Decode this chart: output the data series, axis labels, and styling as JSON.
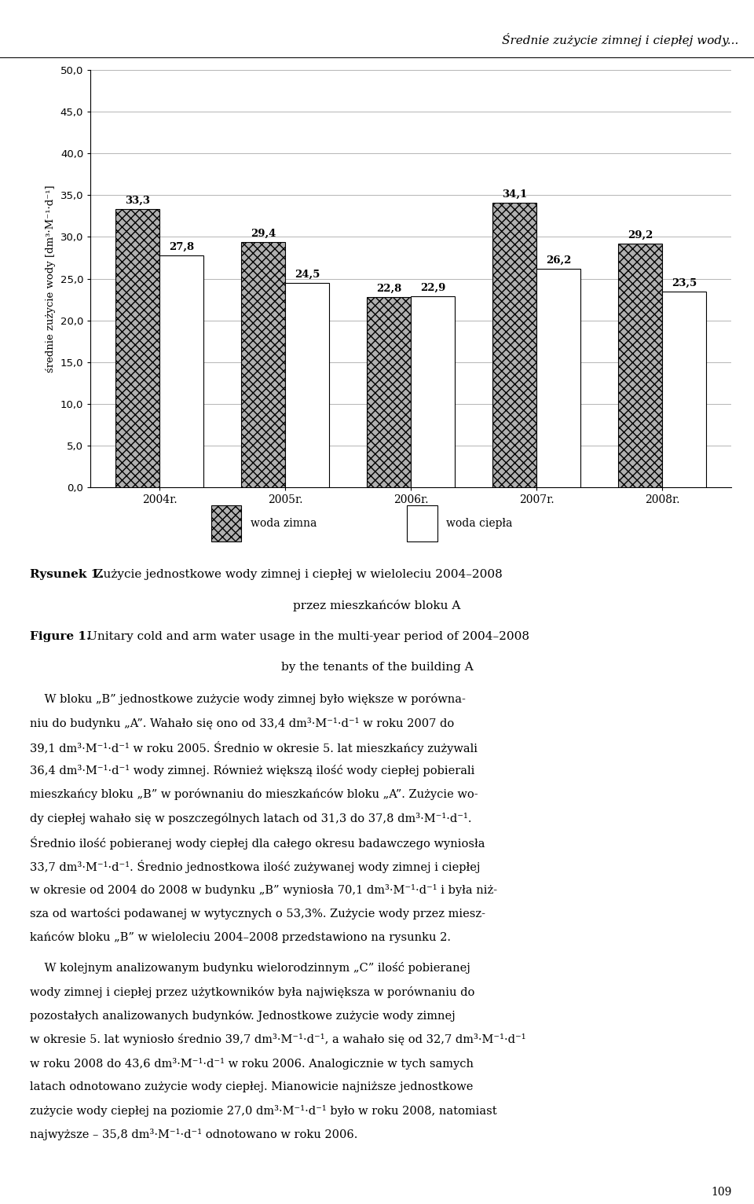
{
  "years": [
    "2004r.",
    "2005r.",
    "2006r.",
    "2007r.",
    "2008r."
  ],
  "cold_water": [
    33.3,
    29.4,
    22.8,
    34.1,
    29.2
  ],
  "warm_water": [
    27.8,
    24.5,
    22.9,
    26.2,
    23.5
  ],
  "ylim": [
    0.0,
    50.0
  ],
  "yticks": [
    0.0,
    5.0,
    10.0,
    15.0,
    20.0,
    25.0,
    30.0,
    35.0,
    40.0,
    45.0,
    50.0
  ],
  "ylabel": "średnie zużycie wody [dm³·M⁻¹·d⁻¹]",
  "legend_cold": "woda zimna",
  "legend_warm": "woda ciepła",
  "header_italic": "Średnie zużycie zimnej i ciepłej wody...",
  "caption_bold1": "Rysunek 1.",
  "caption_rest1": " Zużycie jednostkowe wody zimnej i ciepłej w wieloleciu 2004–2008",
  "caption_line2": "przez mieszkańców bloku A",
  "caption_bold3": "Figure 1.",
  "caption_rest3": " Unitary cold and arm water usage in the multi-year period of 2004–2008",
  "caption_line4": "by the tenants of the building A",
  "body_para1": [
    "    W bloku „B” jednostkowe zużycie wody zimnej było większe w porówna-",
    "niu do budynku „A”. Wahało się ono od 33,4 dm³·M⁻¹·d⁻¹ w roku 2007 do",
    "39,1 dm³·M⁻¹·d⁻¹ w roku 2005. Średnio w okresie 5. lat mieszkańcy zużywali",
    "36,4 dm³·M⁻¹·d⁻¹ wody zimnej. Również większą ilość wody ciepłej pobierali",
    "mieszkańcy bloku „B” w porównaniu do mieszkańców bloku „A”. Zużycie wo-",
    "dy ciepłej wahało się w poszczególnych latach od 31,3 do 37,8 dm³·M⁻¹·d⁻¹.",
    "Średnio ilość pobieranej wody ciepłej dla całego okresu badawczego wyniosła",
    "33,7 dm³·M⁻¹·d⁻¹. Średnio jednostkowa ilość zużywanej wody zimnej i ciepłej",
    "w okresie od 2004 do 2008 w budynku „B” wyniosła 70,1 dm³·M⁻¹·d⁻¹ i była niż-",
    "sza od wartości podawanej w wytycznych o 53,3%. Zużycie wody przez miesz-",
    "kańców bloku „B” w wieloleciu 2004–2008 przedstawiono na rysunku 2."
  ],
  "body_para2": [
    "    W kolejnym analizowanym budynku wielorodzinnym „C” ilość pobieranej",
    "wody zimnej i ciepłej przez użytkowników była największa w porównaniu do",
    "pozostałych analizowanych budynków. Jednostkowe zużycie wody zimnej",
    "w okresie 5. lat wyniosło średnio 39,7 dm³·M⁻¹·d⁻¹, a wahało się od 32,7 dm³·M⁻¹·d⁻¹",
    "w roku 2008 do 43,6 dm³·M⁻¹·d⁻¹ w roku 2006. Analogicznie w tych samych",
    "latach odnotowano zużycie wody ciepłej. Mianowicie najniższe jednostkowe",
    "zużycie wody ciepłej na poziomie 27,0 dm³·M⁻¹·d⁻¹ było w roku 2008, natomiast",
    "najwyższe – 35,8 dm³·M⁻¹·d⁻¹ odnotowano w roku 2006."
  ],
  "page_number": "109",
  "cold_color": "#b0b0b0",
  "warm_color": "#ffffff",
  "bar_edge_color": "#000000",
  "hatch_cold": "xxx",
  "bar_width": 0.35
}
